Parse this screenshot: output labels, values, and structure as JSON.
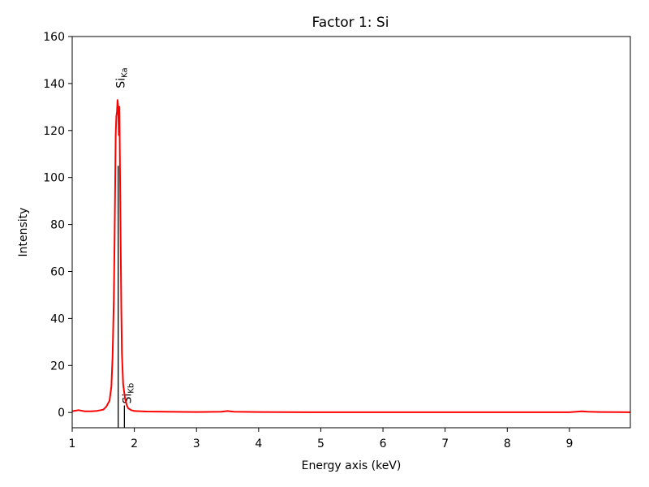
{
  "chart_data": {
    "type": "line",
    "title": "Factor 1: Si",
    "xlabel": "Energy axis (keV)",
    "ylabel": "Intensity",
    "xlim": [
      1,
      9.98
    ],
    "ylim": [
      -6.5,
      160
    ],
    "xticks": [
      "1",
      "2",
      "3",
      "4",
      "5",
      "6",
      "7",
      "8",
      "9"
    ],
    "yticks": [
      "0",
      "20",
      "40",
      "60",
      "80",
      "100",
      "120",
      "140",
      "160"
    ],
    "grid": false,
    "colors": {
      "series": "#ff0000",
      "markers": "#000000"
    },
    "series": [
      {
        "x": [
          1.0,
          1.1,
          1.2,
          1.3,
          1.4,
          1.5,
          1.55,
          1.6,
          1.63,
          1.65,
          1.67,
          1.68,
          1.69,
          1.7,
          1.71,
          1.72,
          1.73,
          1.74,
          1.75,
          1.76,
          1.77,
          1.78,
          1.79,
          1.8,
          1.82,
          1.85,
          1.88,
          1.9,
          1.95,
          2.0,
          2.2,
          2.5,
          3.0,
          3.4,
          3.5,
          3.6,
          4.0,
          5.0,
          6.0,
          7.0,
          8.0,
          9.0,
          9.2,
          9.3,
          9.5,
          9.98
        ],
        "values": [
          0.5,
          1.0,
          0.5,
          0.5,
          0.7,
          1.2,
          2.5,
          5,
          11,
          24,
          48,
          70,
          95,
          118,
          126,
          128,
          133,
          130,
          118,
          130,
          100,
          70,
          45,
          25,
          12,
          6,
          3,
          1.8,
          1.0,
          0.6,
          0.4,
          0.3,
          0.2,
          0.3,
          0.6,
          0.3,
          0.2,
          0.1,
          0.1,
          0.1,
          0.1,
          0.1,
          0.5,
          0.3,
          0.2,
          0.1
        ]
      }
    ],
    "markers": [
      {
        "x": 1.74,
        "height": 105,
        "label": "Si",
        "sub": "Ka"
      },
      {
        "x": 1.84,
        "height": 3,
        "label": "Si",
        "sub": "Kb"
      }
    ]
  }
}
